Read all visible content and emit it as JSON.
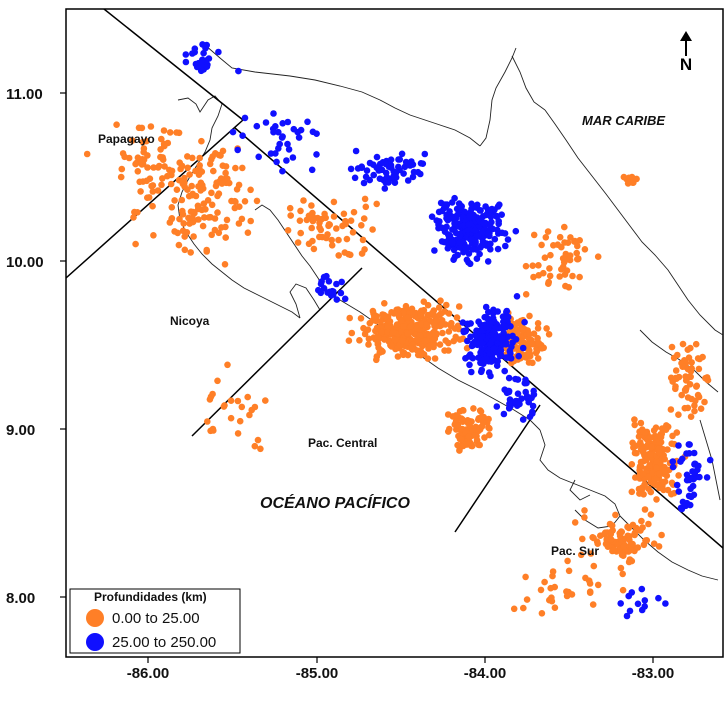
{
  "map": {
    "north_label": "N",
    "y_ticks": [
      "11.00",
      "10.00",
      "9.00",
      "8.00"
    ],
    "x_ticks": [
      "-86.00",
      "-85.00",
      "-84.00",
      "-83.00"
    ],
    "regions": {
      "papagayo": "Papagayo",
      "nicoya": "Nicoya",
      "pac_central": "Pac. Central",
      "pac_sur": "Pac. Sur"
    },
    "seas": {
      "caribe": "MAR CARIBE",
      "pacifico": "OCÉANO PACÍFICO"
    },
    "legend": {
      "title": "Profundidades (km)",
      "items": [
        {
          "label": "0.00  to  25.00",
          "color": "#ff7f27"
        },
        {
          "label": "25.00  to  250.00",
          "color": "#1010ff"
        }
      ]
    }
  }
}
